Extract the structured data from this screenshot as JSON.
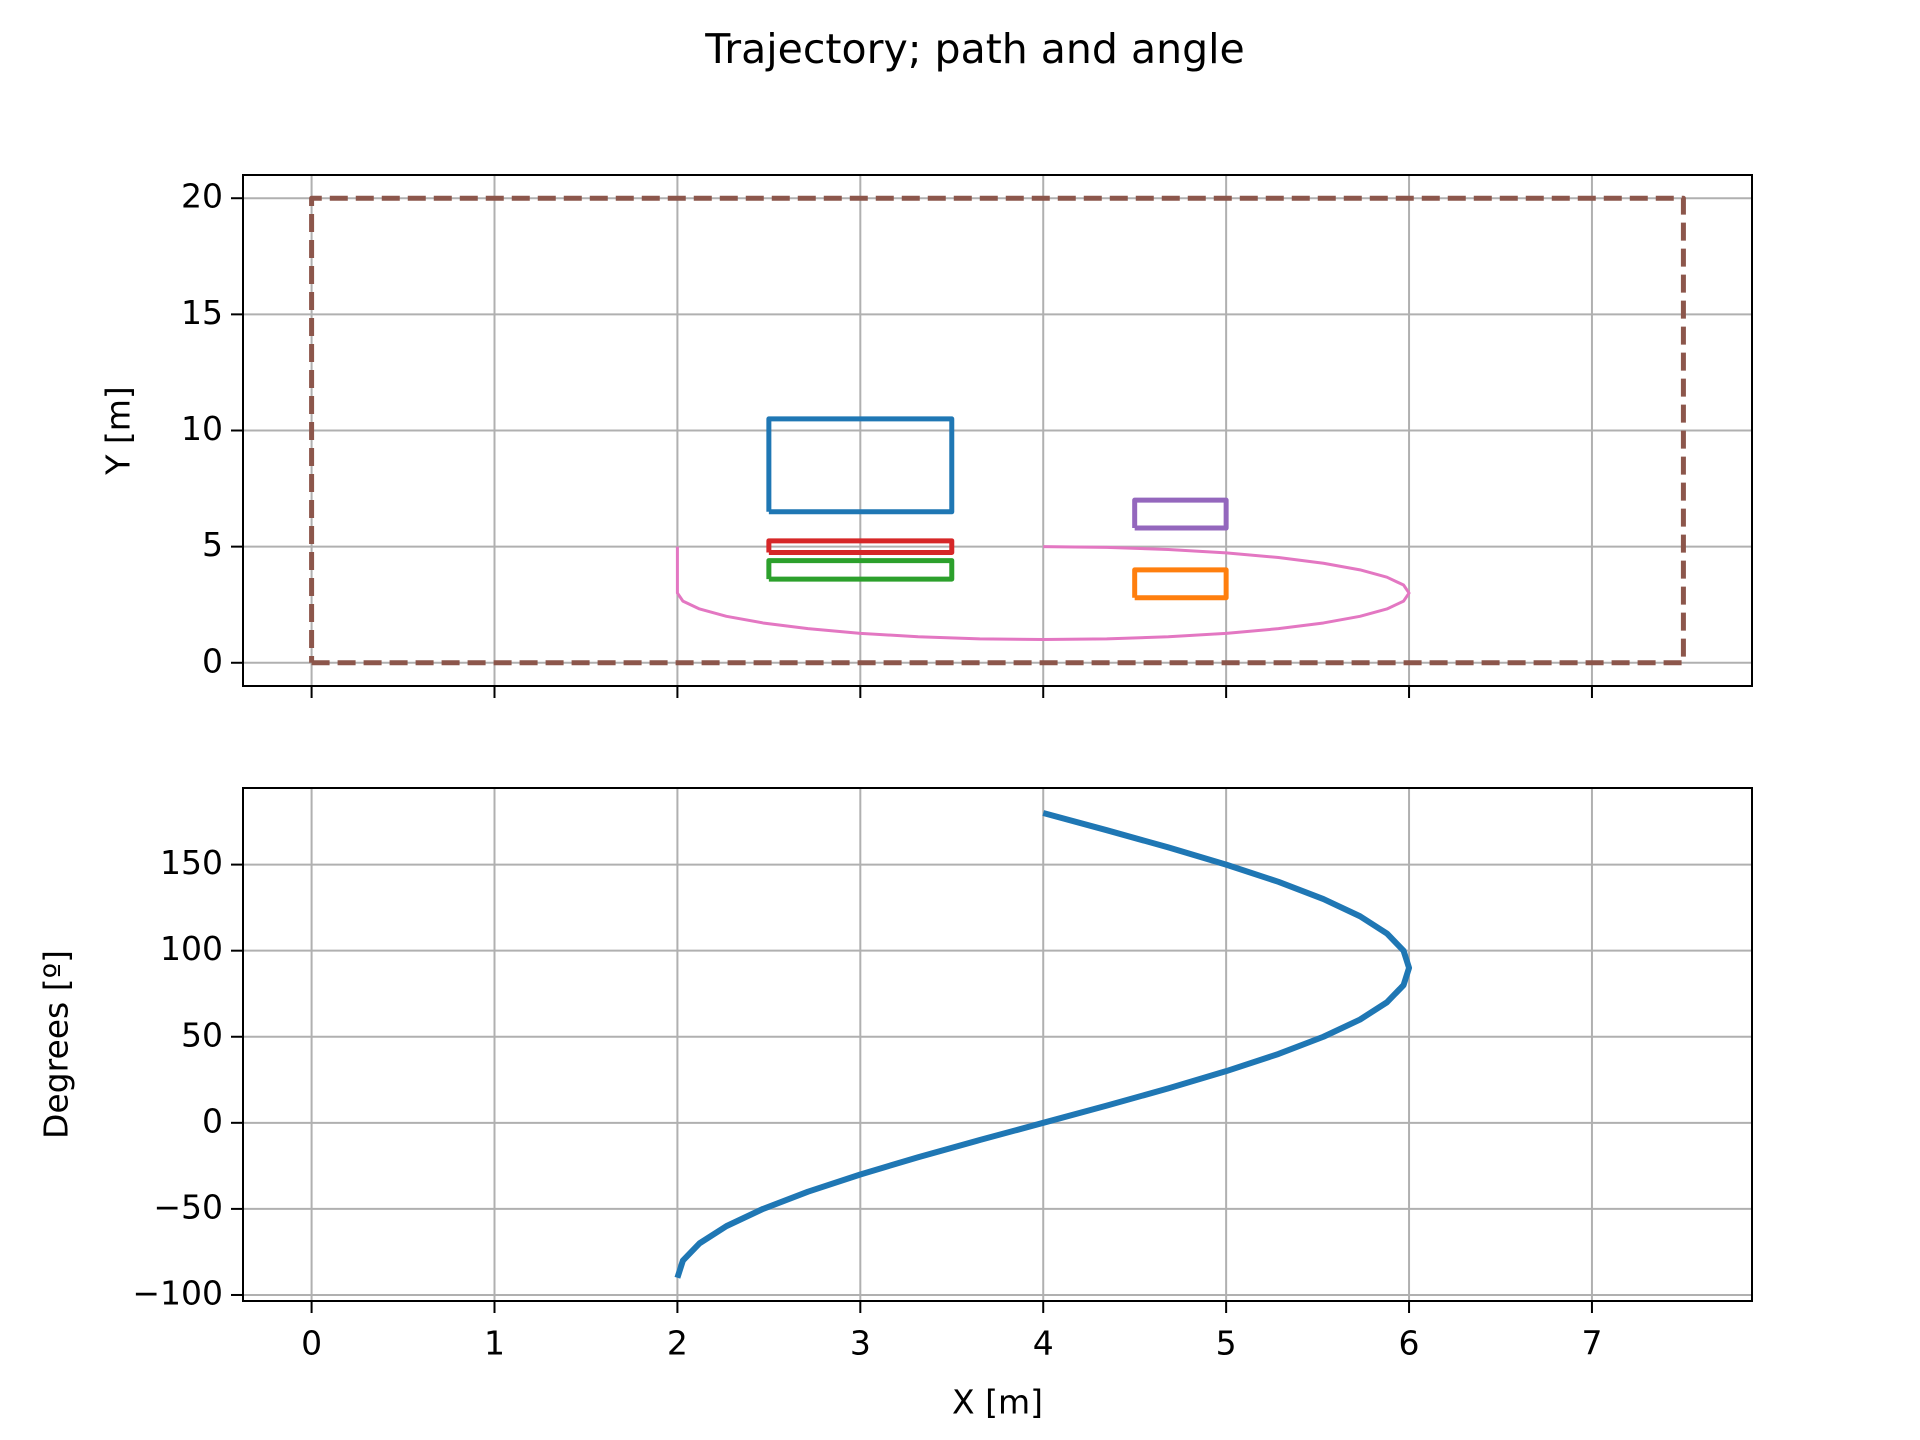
{
  "chart_data": [
    {
      "type": "line",
      "title": "Trajectory; path and angle",
      "ylabel": "Y [m]",
      "sharex": true,
      "xlim": [
        -0.375,
        7.875
      ],
      "ylim": [
        -1,
        21
      ],
      "xticks": [
        0,
        1,
        2,
        3,
        4,
        5,
        6,
        7
      ],
      "yticks": [
        0,
        5,
        10,
        15,
        20
      ],
      "grid": true,
      "series": [
        {
          "color": "#8c564b",
          "linestyle": "dashed",
          "x": [
            0,
            7.5,
            7.5,
            0,
            0
          ],
          "values": [
            0,
            0,
            20,
            20,
            0
          ]
        },
        {
          "color": "#1f77b4",
          "x": [
            2.5,
            3.5,
            3.5,
            2.5,
            2.5
          ],
          "values": [
            6.5,
            6.5,
            10.5,
            10.5,
            6.5
          ]
        },
        {
          "color": "#ff7f0e",
          "x": [
            4.5,
            5,
            5,
            4.5,
            4.5
          ],
          "values": [
            2.8,
            2.8,
            4,
            4,
            2.8
          ]
        },
        {
          "color": "#2ca02c",
          "x": [
            2.5,
            3.5,
            3.5,
            2.5,
            2.5
          ],
          "values": [
            3.6,
            3.6,
            4.4,
            4.4,
            3.6
          ]
        },
        {
          "color": "#d62728",
          "x": [
            2.5,
            3.5,
            3.5,
            2.5,
            2.5
          ],
          "values": [
            4.75,
            4.75,
            5.25,
            5.25,
            4.75
          ]
        },
        {
          "color": "#9467bd",
          "x": [
            4.5,
            5,
            5,
            4.5,
            4.5
          ],
          "values": [
            5.8,
            5.8,
            7,
            7,
            5.8
          ]
        },
        {
          "color": "#e377c2",
          "width": 3,
          "x": [
            2,
            2,
            2.03,
            2.121,
            2.268,
            2.468,
            2.714,
            3,
            3.316,
            3.653,
            4,
            4.347,
            4.684,
            5,
            5.286,
            5.532,
            5.732,
            5.879,
            5.97,
            6,
            5.97,
            5.879,
            5.732,
            5.532,
            5.286,
            5,
            4.684,
            4.347,
            4
          ],
          "values": [
            5,
            3,
            2.653,
            2.316,
            2,
            1.714,
            1.468,
            1.268,
            1.121,
            1.03,
            1,
            1.03,
            1.121,
            1.268,
            1.468,
            1.714,
            2,
            2.316,
            2.653,
            3,
            3.347,
            3.684,
            4,
            4.286,
            4.532,
            4.732,
            4.879,
            4.97,
            5
          ]
        }
      ]
    },
    {
      "type": "line",
      "xlabel": "X [m]",
      "ylabel": "Degrees [º]",
      "xlim": [
        -0.375,
        7.875
      ],
      "ylim": [
        -103.5,
        194.5
      ],
      "xticks": [
        0,
        1,
        2,
        3,
        4,
        5,
        6,
        7
      ],
      "yticks": [
        {
          "value": -100,
          "label": "−100"
        },
        {
          "value": -50,
          "label": "−50"
        },
        0,
        50,
        100,
        150
      ],
      "grid": true,
      "series": [
        {
          "color": "#1f77b4",
          "width": 6,
          "x": [
            2,
            2.03,
            2.121,
            2.268,
            2.468,
            2.714,
            3,
            3.316,
            3.653,
            4,
            4.347,
            4.684,
            5,
            5.286,
            5.532,
            5.732,
            5.879,
            5.97,
            6,
            5.97,
            5.879,
            5.732,
            5.532,
            5.286,
            5,
            4.684,
            4.347,
            4
          ],
          "values": [
            -90,
            -80,
            -70,
            -60,
            -50,
            -40,
            -30,
            -20,
            -10,
            0,
            10,
            20,
            30,
            40,
            50,
            60,
            70,
            80,
            90,
            100,
            110,
            120,
            130,
            140,
            150,
            160,
            170,
            180
          ]
        }
      ]
    }
  ]
}
